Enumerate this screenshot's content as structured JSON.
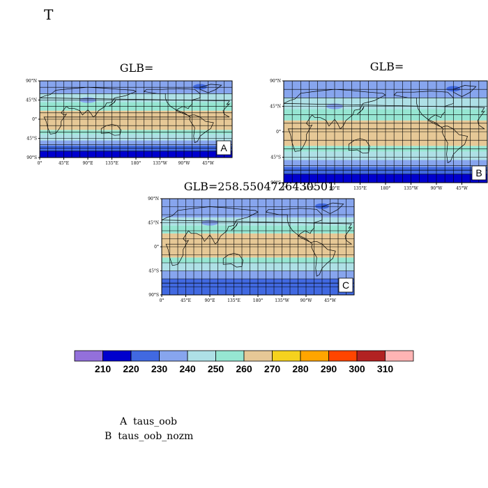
{
  "page_title": "T",
  "panels": [
    {
      "id": "A",
      "title": "GLB=",
      "tag": "A"
    },
    {
      "id": "B",
      "title": "GLB=",
      "tag": "B"
    },
    {
      "id": "C",
      "title": "GLB=258.5504726430501",
      "tag": "C"
    }
  ],
  "lat_labels": [
    "90°N",
    "45°N",
    "0°",
    "45°S",
    "90°S"
  ],
  "lon_labels": [
    "0°",
    "45°E",
    "90°E",
    "135°E",
    "180°",
    "135°W",
    "90°W",
    "45°W"
  ],
  "bands_south_to_north": [
    {
      "panel": "A",
      "colors": [
        "#0000cd",
        "#4169e1",
        "#87a5ee",
        "#aee0e6",
        "#96e6d2",
        "#e6c896",
        "#96e6d2",
        "#aee0e6",
        "#87a5ee"
      ]
    },
    {
      "panel": "B",
      "colors": [
        "#0000cd",
        "#4169e1",
        "#87a5ee",
        "#aee0e6",
        "#96e6d2",
        "#e6c896",
        "#96e6d2",
        "#aee0e6",
        "#87a5ee"
      ]
    },
    {
      "panel": "C",
      "colors": [
        "#4169e1",
        "#87a5ee",
        "#aee0e6",
        "#96e6d2",
        "#e6c896",
        "#96e6d2",
        "#aee0e6",
        "#87a5ee"
      ]
    }
  ],
  "colorbar": {
    "colors": [
      "#9370db",
      "#0000cd",
      "#4169e1",
      "#87a5ee",
      "#aee0e6",
      "#96e6d2",
      "#e6c896",
      "#f5d21e",
      "#ffa500",
      "#ff4500",
      "#b22222",
      "#ffb4b4"
    ],
    "labels": [
      "210",
      "220",
      "230",
      "240",
      "250",
      "260",
      "270",
      "280",
      "290",
      "300",
      "310"
    ]
  },
  "legend": {
    "line_a": "A  taus_oob",
    "line_b": "B  taus_oob_nozm"
  }
}
